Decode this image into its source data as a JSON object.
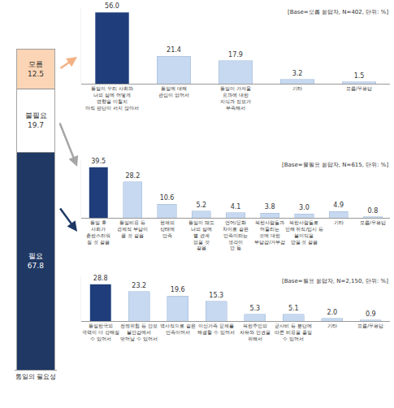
{
  "chart_data": [
    {
      "type": "bar",
      "stacked": true,
      "data_labels": true,
      "tick_labels": "x",
      "grid": false,
      "categories": [
        "통일의 필요성"
      ],
      "ylim": [
        0,
        100
      ],
      "yticks": [
        0,
        100
      ],
      "series": [
        {
          "name": "필요",
          "color": "#1f3864",
          "values": [
            67.8
          ]
        },
        {
          "name": "불필요",
          "color": "#ffffff",
          "values": [
            19.7
          ]
        },
        {
          "name": "모름",
          "color": "#fbd5b5",
          "values": [
            12.5
          ]
        }
      ]
    },
    {
      "type": "bar",
      "data_labels": true,
      "tick_labels": "x",
      "grid": false,
      "note": "[Base=모름 응답자, N=402, 단위: %]",
      "categories": [
        "통일이 우리 사회와\n나의 삶에 어떻게\n영향을 미칠지\n아직 판단이 서지 않아서",
        "통일에 대해\n관심이 없어서",
        "통일이 가져올\n효과에 대한\n지식과 정보가\n부족해서",
        "기타",
        "모름/무응답"
      ],
      "values": [
        56.0,
        21.4,
        17.9,
        3.2,
        1.5
      ],
      "value_labels": [
        "56.0",
        "21.4",
        "17.9",
        "3.2",
        "1.5"
      ],
      "colors": [
        "#1f3d7a",
        "#c6d9f0",
        "#c6d9f0",
        "#c6d9f0",
        "#c6d9f0"
      ],
      "ylim": [
        0,
        60
      ],
      "yticks": [
        0,
        60
      ]
    },
    {
      "type": "bar",
      "data_labels": true,
      "tick_labels": "x",
      "grid": false,
      "note": "[Base=불필요 응답자, N=615, 단위: %]",
      "categories": [
        "통일 후\n사회가\n혼란스러워\n질 것 같음",
        "통일비용 등\n경제적 부담이\n클 것 같음",
        "현재의\n상태에\n만족",
        "통일이 돼도\n나의 삶에\n별 관계\n없을 것\n같음",
        "언어/문화\n차이로 같은\n민족이라는\n생각이\n안 듦",
        "북한사람들과\n어울리는\n것에 대한\n부담감/거부감",
        "북한사람들로\n인해 취직/입시 등\n불이익을\n받을 것 같음",
        "기타",
        "모름/무응답"
      ],
      "values": [
        39.5,
        28.2,
        10.6,
        5.2,
        4.1,
        3.8,
        3.0,
        4.9,
        0.8
      ],
      "value_labels": [
        "39.5",
        "28.2",
        "10.6",
        "5.2",
        "4.1",
        "3.8",
        "3.0",
        "4.9",
        "0.8"
      ],
      "colors": [
        "#1f3d7a",
        "#c6d9f0",
        "#c6d9f0",
        "#c6d9f0",
        "#c6d9f0",
        "#c6d9f0",
        "#c6d9f0",
        "#c6d9f0",
        "#c6d9f0"
      ],
      "ylim": [
        0,
        45
      ],
      "yticks": [
        0,
        45
      ]
    },
    {
      "type": "bar",
      "data_labels": true,
      "tick_labels": "x",
      "grid": false,
      "note": "[Base=필요 응답자, N=2,150, 단위: %]",
      "categories": [
        "통일한국의\n국력이 더 강해질\n수 있어서",
        "전쟁위협 등 안보\n불안감에서\n벗어날 수 있어서",
        "역사적으로 같은\n민족이어서",
        "이산가족 문제를\n해결할 수 있어서",
        "북한주민의\n자유와 인권을\n위해서",
        "군사비 등 분단에\n따른 비용을 줄일\n수 있어서",
        "기타",
        "모름/무응답"
      ],
      "values": [
        28.8,
        23.2,
        19.6,
        15.3,
        5.3,
        5.1,
        2.0,
        0.9
      ],
      "value_labels": [
        "28.8",
        "23.2",
        "19.6",
        "15.3",
        "5.3",
        "5.1",
        "2.0",
        "0.9"
      ],
      "colors": [
        "#1f3d7a",
        "#c6d9f0",
        "#c6d9f0",
        "#c6d9f0",
        "#c6d9f0",
        "#c6d9f0",
        "#c6d9f0",
        "#c6d9f0"
      ],
      "ylim": [
        0,
        35
      ],
      "yticks": [
        0,
        35
      ]
    }
  ]
}
